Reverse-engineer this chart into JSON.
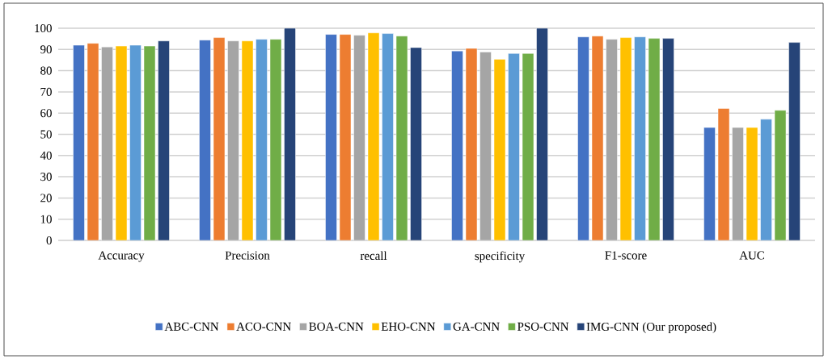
{
  "chart_data": {
    "type": "bar",
    "categories": [
      "Accuracy",
      "Precision",
      "recall",
      "specificity",
      "F1-score",
      "AUC"
    ],
    "series": [
      {
        "name": "ABC-CNN",
        "color": "#4472c4",
        "values": [
          92.0,
          94.4,
          97.1,
          89.3,
          95.9,
          53.2
        ]
      },
      {
        "name": "ACO-CNN",
        "color": "#ed7d31",
        "values": [
          92.9,
          95.6,
          97.1,
          90.5,
          96.3,
          62.2
        ]
      },
      {
        "name": "BOA-CNN",
        "color": "#a5a5a5",
        "values": [
          91.2,
          94.0,
          96.7,
          88.8,
          94.8,
          53.2
        ]
      },
      {
        "name": "EHO-CNN",
        "color": "#ffc000",
        "values": [
          91.6,
          94.0,
          97.8,
          85.4,
          95.6,
          53.2
        ]
      },
      {
        "name": "GA-CNN",
        "color": "#5b9bd5",
        "values": [
          92.0,
          94.8,
          97.5,
          88.1,
          95.9,
          57.1
        ]
      },
      {
        "name": "PSO-CNN",
        "color": "#70ad47",
        "values": [
          91.6,
          94.8,
          96.3,
          88.1,
          95.2,
          61.3
        ]
      },
      {
        "name": "IMG-CNN (Our proposed)",
        "color": "#264478",
        "values": [
          94.0,
          100,
          90.9,
          100,
          95.2,
          93.3
        ]
      }
    ],
    "ylim": [
      0,
      100
    ],
    "yticks": [
      0,
      10,
      20,
      30,
      40,
      50,
      60,
      70,
      80,
      90,
      100
    ],
    "grid": "y",
    "legend": "bottom"
  }
}
